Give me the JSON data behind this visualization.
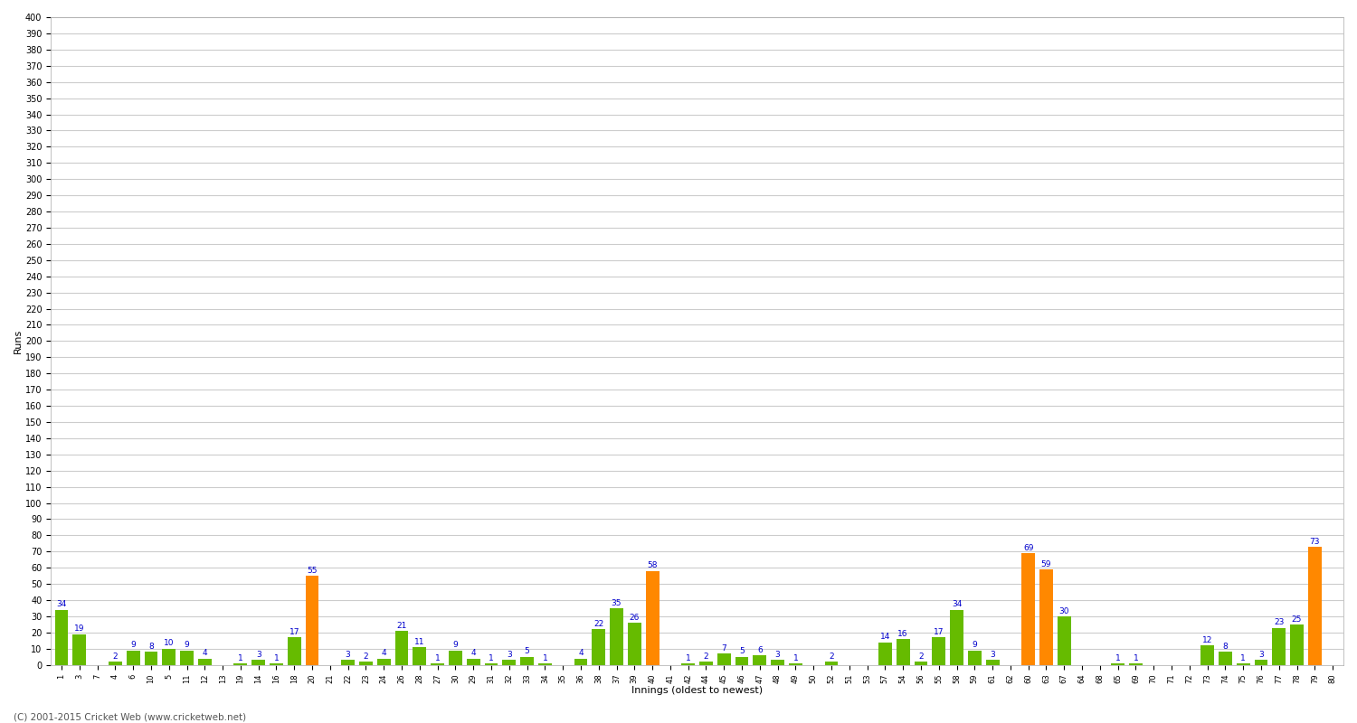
{
  "innings_data": [
    [
      "1",
      34,
      false
    ],
    [
      "3",
      19,
      false
    ],
    [
      "7",
      0,
      false
    ],
    [
      "4",
      2,
      false
    ],
    [
      "6",
      9,
      false
    ],
    [
      "10",
      8,
      false
    ],
    [
      "5",
      10,
      false
    ],
    [
      "11",
      9,
      false
    ],
    [
      "12",
      4,
      false
    ],
    [
      "13",
      0,
      false
    ],
    [
      "19",
      1,
      false
    ],
    [
      "14",
      3,
      false
    ],
    [
      "16",
      1,
      false
    ],
    [
      "18",
      17,
      false
    ],
    [
      "20",
      55,
      true
    ],
    [
      "21",
      0,
      false
    ],
    [
      "22",
      3,
      false
    ],
    [
      "23",
      2,
      false
    ],
    [
      "24",
      4,
      false
    ],
    [
      "26",
      21,
      false
    ],
    [
      "28",
      11,
      false
    ],
    [
      "27",
      1,
      false
    ],
    [
      "30",
      9,
      false
    ],
    [
      "29",
      4,
      false
    ],
    [
      "31",
      1,
      false
    ],
    [
      "32",
      3,
      false
    ],
    [
      "33",
      5,
      false
    ],
    [
      "34",
      1,
      false
    ],
    [
      "35",
      0,
      false
    ],
    [
      "36",
      4,
      false
    ],
    [
      "38",
      22,
      false
    ],
    [
      "37",
      35,
      false
    ],
    [
      "39",
      26,
      false
    ],
    [
      "40",
      58,
      true
    ],
    [
      "41",
      0,
      false
    ],
    [
      "42",
      1,
      false
    ],
    [
      "44",
      2,
      false
    ],
    [
      "45",
      7,
      false
    ],
    [
      "46",
      5,
      false
    ],
    [
      "47",
      6,
      false
    ],
    [
      "48",
      3,
      false
    ],
    [
      "49",
      1,
      false
    ],
    [
      "50",
      0,
      false
    ],
    [
      "52",
      2,
      false
    ],
    [
      "51",
      0,
      false
    ],
    [
      "53",
      0,
      false
    ],
    [
      "57",
      14,
      false
    ],
    [
      "54",
      16,
      false
    ],
    [
      "56",
      2,
      false
    ],
    [
      "55",
      17,
      false
    ],
    [
      "58",
      34,
      false
    ],
    [
      "59",
      9,
      false
    ],
    [
      "61",
      3,
      false
    ],
    [
      "62",
      0,
      false
    ],
    [
      "60",
      69,
      true
    ],
    [
      "63",
      59,
      true
    ],
    [
      "67",
      30,
      false
    ],
    [
      "64",
      0,
      false
    ],
    [
      "68",
      0,
      false
    ],
    [
      "65",
      1,
      false
    ],
    [
      "69",
      1,
      false
    ],
    [
      "70",
      0,
      false
    ],
    [
      "71",
      0,
      false
    ],
    [
      "72",
      0,
      false
    ],
    [
      "73",
      12,
      false
    ],
    [
      "74",
      8,
      false
    ],
    [
      "75",
      1,
      false
    ],
    [
      "76",
      3,
      false
    ],
    [
      "77",
      23,
      false
    ],
    [
      "78",
      25,
      false
    ],
    [
      "79",
      73,
      true
    ],
    [
      "80",
      0,
      false
    ]
  ],
  "ylabel": "Runs",
  "xlabel": "Innings (oldest to newest)",
  "ylim": [
    0,
    400
  ],
  "green_color": "#66bb00",
  "orange_color": "#ff8800",
  "plot_bg_color": "#ffffff",
  "fig_bg_color": "#ffffff",
  "grid_color": "#cccccc",
  "label_color": "#0000cc",
  "copyright": "(C) 2001-2015 Cricket Web (www.cricketweb.net)"
}
